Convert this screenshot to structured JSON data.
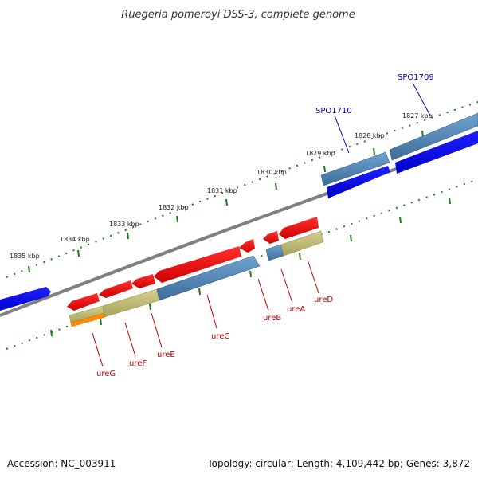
{
  "title": "Ruegeria pomeroyi DSS-3, complete genome",
  "footer": {
    "accession": "Accession: NC_003911",
    "summary": "Topology: circular; Length: 4,109,442 bp; Genes: 3,872"
  },
  "ticks": [
    "1835 kbp",
    "1834 kbp",
    "1833 kbp",
    "1832 kbp",
    "1831 kbp",
    "1830 kbp",
    "1829 kbp",
    "1828 kbp",
    "1827 kbp"
  ],
  "genes_labeled": {
    "SPO1709": "SPO1709",
    "SPO1710": "SPO1710",
    "ureG": "ureG",
    "ureF": "ureF",
    "ureE": "ureE",
    "ureC": "ureC",
    "ureB": "ureB",
    "ureA": "ureA",
    "ureD": "ureD"
  },
  "colors": {
    "cds_forward": "#0000ee",
    "cds_reverse": "#ee0000",
    "gene_blue": "#4682b4",
    "gene_khaki": "#bdb76b",
    "gene_orange": "#ff8c00",
    "backbone": "#808080",
    "tick": "#1a7a1a",
    "red_label": "#c00000",
    "blue_label": "#0000c0"
  }
}
